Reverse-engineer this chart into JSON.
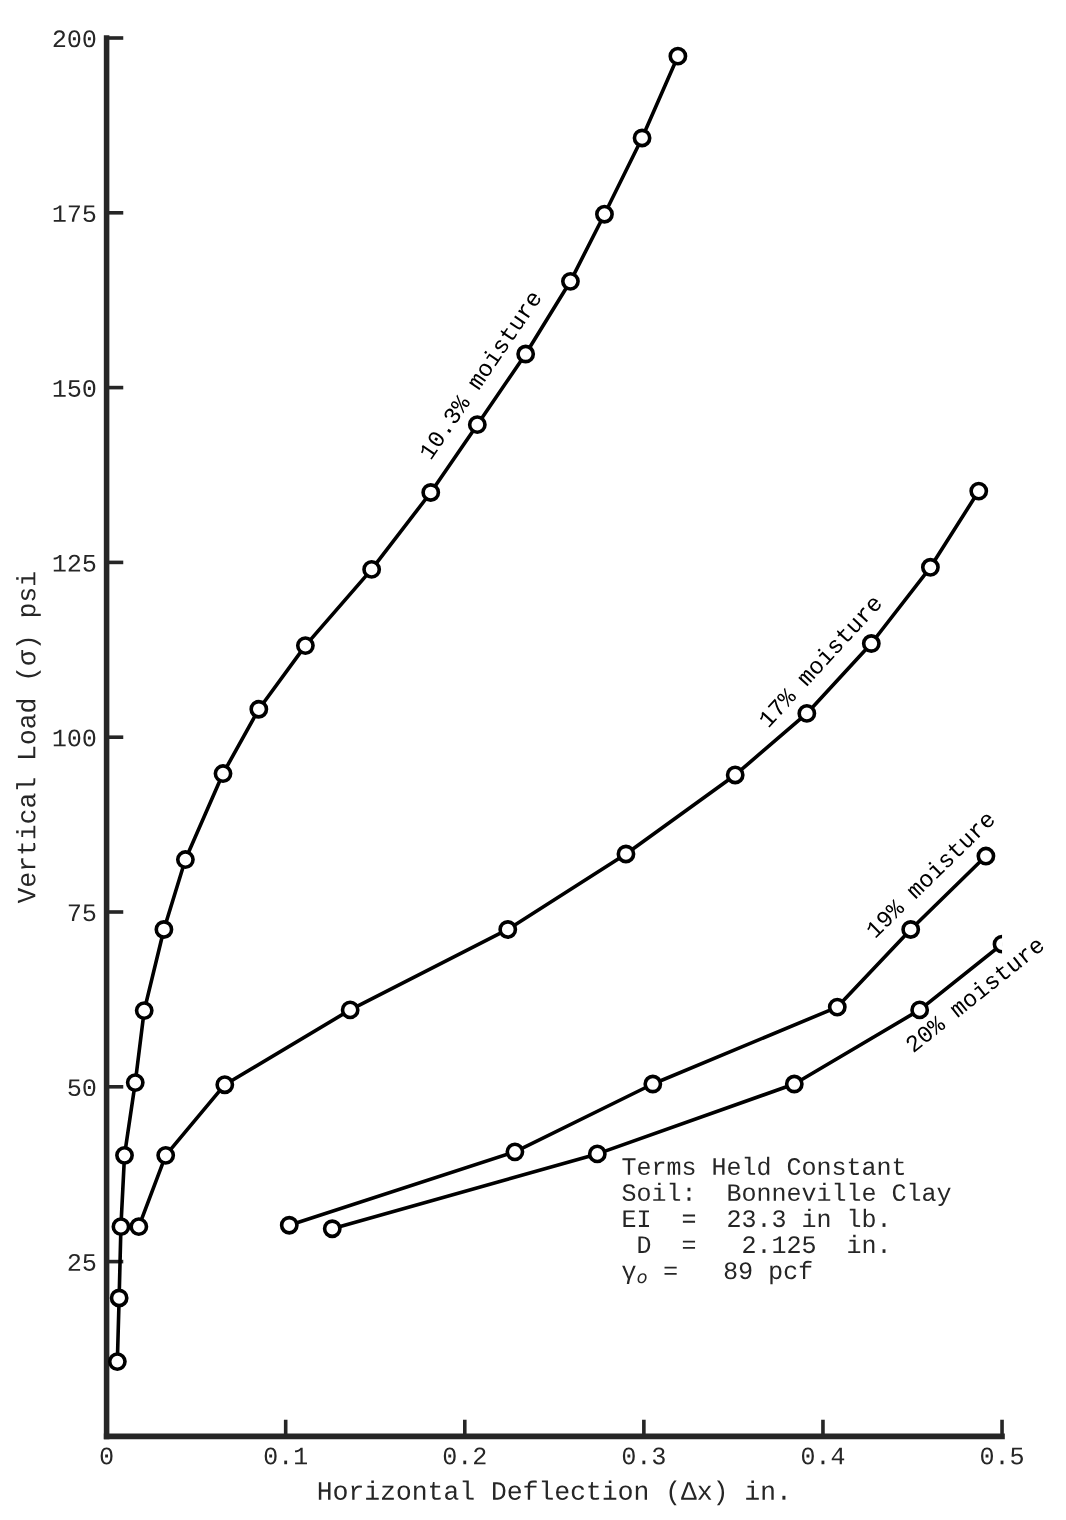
{
  "chart_data": {
    "type": "line",
    "xlabel": "Horizontal Deflection (Δx) in.",
    "ylabel": "Vertical Load (σ) psi",
    "xlim": [
      0,
      0.5
    ],
    "ylim": [
      0,
      200
    ],
    "xticks": [
      0,
      0.1,
      0.2,
      0.3,
      0.4,
      0.5
    ],
    "yticks": [
      25,
      50,
      75,
      100,
      125,
      150,
      175,
      200
    ],
    "grid": false,
    "marker": "circle",
    "line_style": "solid",
    "legend": false,
    "series": [
      {
        "name": "10.3% moisture",
        "color": "#000000",
        "x": [
          0.006,
          0.007,
          0.008,
          0.01,
          0.016,
          0.021,
          0.032,
          0.044,
          0.065,
          0.085,
          0.111,
          0.148,
          0.181,
          0.207,
          0.234,
          0.259,
          0.278,
          0.299,
          0.319
        ],
        "values": [
          10.7,
          19.8,
          30,
          40.2,
          50.6,
          60.9,
          72.5,
          82.5,
          94.8,
          104,
          113.1,
          124,
          135,
          144.7,
          154.8,
          165.2,
          174.8,
          185.7,
          197.4
        ]
      },
      {
        "name": "17% moisture",
        "color": "#000000",
        "x": [
          0.018,
          0.033,
          0.066,
          0.136,
          0.224,
          0.29,
          0.351,
          0.391,
          0.427,
          0.46,
          0.487
        ],
        "values": [
          30,
          40.2,
          50.3,
          61,
          72.5,
          83.3,
          94.6,
          103.4,
          113.4,
          124.3,
          135.2
        ]
      },
      {
        "name": "19% moisture",
        "color": "#000000",
        "x": [
          0.102,
          0.228,
          0.305,
          0.408,
          0.449,
          0.491
        ],
        "values": [
          30.2,
          40.7,
          50.4,
          61.4,
          72.5,
          83
        ]
      },
      {
        "name": "20% moisture",
        "color": "#000000",
        "x": [
          0.126,
          0.274,
          0.384,
          0.454,
          0.5
        ],
        "values": [
          29.7,
          40.4,
          50.4,
          61,
          70.4
        ]
      }
    ],
    "annotations": [
      "Terms Held Constant\nSoil:  Bonneville Clay\nEI  =  23.3 in lb.\n D  =   2.125  in.\nγ$_{o}$ =   89 pcf"
    ]
  }
}
